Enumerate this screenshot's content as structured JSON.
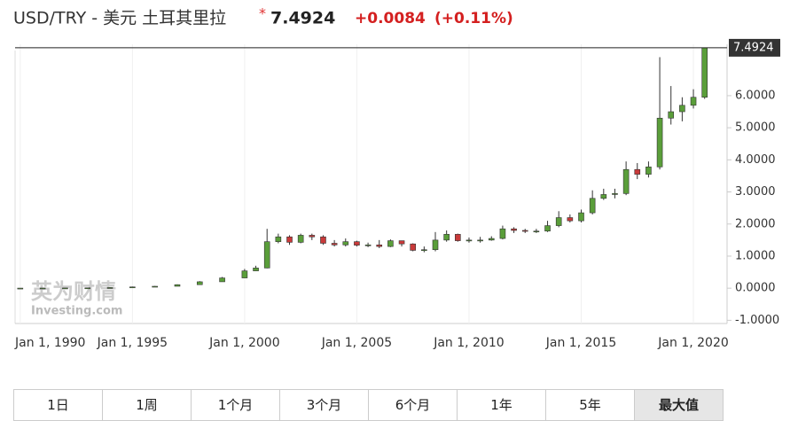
{
  "header": {
    "title": "USD/TRY - 美元 土耳其里拉",
    "price": "7.4924",
    "change": "+0.0084",
    "change_pct": "(+0.11%)"
  },
  "watermark": {
    "cn": "英为财情",
    "en": "Investing.com"
  },
  "chart_data": {
    "type": "candlestick",
    "up_color": "#5a9e3a",
    "down_color": "#c93a3a",
    "grid": "x",
    "last_value": 7.4924,
    "xlim": [
      1989.77,
      2021.5
    ],
    "ylim": [
      -1.1,
      7.6
    ],
    "xticks": [
      {
        "value": 1990,
        "label": "Jan 1, 1990"
      },
      {
        "value": 1995,
        "label": "Jan 1, 1995"
      },
      {
        "value": 2000,
        "label": "Jan 1, 2000"
      },
      {
        "value": 2005,
        "label": "Jan 1, 2005"
      },
      {
        "value": 2010,
        "label": "Jan 1, 2010"
      },
      {
        "value": 2015,
        "label": "Jan 1, 2015"
      },
      {
        "value": 2020,
        "label": "Jan 1, 2020"
      }
    ],
    "yticks": [
      {
        "value": -1,
        "label": "-1.0000"
      },
      {
        "value": 0,
        "label": "0.0000"
      },
      {
        "value": 1,
        "label": "1.0000"
      },
      {
        "value": 2,
        "label": "2.0000"
      },
      {
        "value": 3,
        "label": "3.0000"
      },
      {
        "value": 4,
        "label": "4.0000"
      },
      {
        "value": 5,
        "label": "5.0000"
      },
      {
        "value": 6,
        "label": "6.0000"
      }
    ],
    "x": [
      1990,
      1991,
      1992,
      1993,
      1994,
      1995,
      1996,
      1997,
      1998,
      1999,
      2000,
      2000.5,
      2001,
      2001.5,
      2002,
      2002.5,
      2003,
      2003.5,
      2004,
      2004.5,
      2005,
      2005.5,
      2006,
      2006.5,
      2007,
      2007.5,
      2008,
      2008.5,
      2009,
      2009.5,
      2010,
      2010.5,
      2011,
      2011.5,
      2012,
      2012.5,
      2013,
      2013.5,
      2014,
      2014.5,
      2015,
      2015.5,
      2016,
      2016.5,
      2017,
      2017.5,
      2018,
      2018.5,
      2019,
      2019.5,
      2020,
      2020.5
    ],
    "open": [
      0.002,
      0.003,
      0.005,
      0.007,
      0.011,
      0.02,
      0.04,
      0.06,
      0.11,
      0.2,
      0.32,
      0.54,
      0.63,
      1.45,
      1.6,
      1.43,
      1.65,
      1.6,
      1.4,
      1.35,
      1.45,
      1.34,
      1.35,
      1.3,
      1.48,
      1.38,
      1.18,
      1.2,
      1.5,
      1.68,
      1.48,
      1.5,
      1.5,
      1.55,
      1.85,
      1.8,
      1.78,
      1.78,
      1.95,
      2.2,
      2.1,
      2.35,
      2.8,
      2.92,
      2.95,
      3.7,
      3.55,
      3.78,
      5.3,
      5.5,
      5.7,
      5.95
    ],
    "high": [
      0.003,
      0.005,
      0.007,
      0.011,
      0.03,
      0.05,
      0.07,
      0.12,
      0.22,
      0.35,
      0.6,
      0.7,
      1.85,
      1.7,
      1.65,
      1.7,
      1.7,
      1.65,
      1.5,
      1.55,
      1.48,
      1.42,
      1.5,
      1.52,
      1.48,
      1.4,
      1.3,
      1.75,
      1.8,
      1.7,
      1.58,
      1.6,
      1.62,
      1.95,
      1.9,
      1.85,
      1.85,
      2.1,
      2.4,
      2.3,
      2.45,
      3.05,
      3.1,
      3.1,
      3.95,
      3.9,
      3.95,
      7.2,
      6.3,
      5.95,
      6.2,
      7.5
    ],
    "low": [
      0.002,
      0.003,
      0.005,
      0.007,
      0.011,
      0.02,
      0.04,
      0.06,
      0.11,
      0.2,
      0.32,
      0.54,
      0.62,
      1.4,
      1.35,
      1.4,
      1.5,
      1.35,
      1.3,
      1.3,
      1.3,
      1.28,
      1.25,
      1.28,
      1.3,
      1.15,
      1.12,
      1.15,
      1.45,
      1.45,
      1.42,
      1.42,
      1.48,
      1.52,
      1.72,
      1.72,
      1.72,
      1.75,
      1.9,
      2.05,
      2.05,
      2.3,
      2.75,
      2.8,
      2.9,
      3.4,
      3.45,
      3.7,
      5.1,
      5.2,
      5.6,
      5.9
    ],
    "close": [
      0.003,
      0.005,
      0.007,
      0.011,
      0.02,
      0.04,
      0.06,
      0.11,
      0.2,
      0.32,
      0.54,
      0.63,
      1.45,
      1.6,
      1.43,
      1.65,
      1.6,
      1.4,
      1.35,
      1.45,
      1.34,
      1.35,
      1.3,
      1.48,
      1.38,
      1.18,
      1.2,
      1.5,
      1.68,
      1.48,
      1.5,
      1.5,
      1.55,
      1.85,
      1.8,
      1.78,
      1.78,
      1.95,
      2.2,
      2.1,
      2.35,
      2.8,
      2.92,
      2.95,
      3.7,
      3.55,
      3.78,
      5.3,
      5.5,
      5.7,
      5.95,
      7.4924
    ]
  },
  "ranges": [
    "1日",
    "1周",
    "1个月",
    "3个月",
    "6个月",
    "1年",
    "5年",
    "最大值"
  ]
}
